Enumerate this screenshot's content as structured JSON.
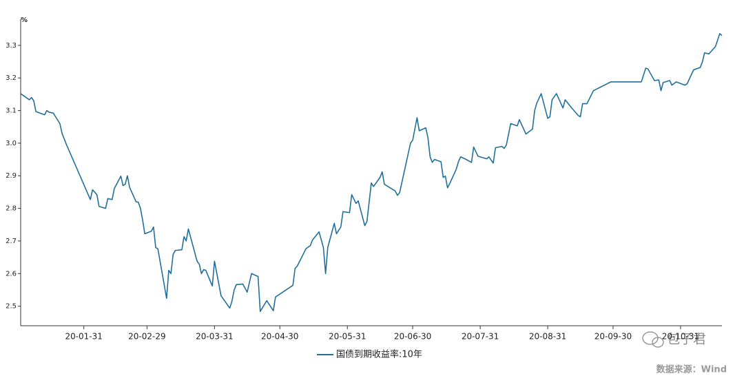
{
  "chart_data": {
    "type": "line",
    "unit_label": "%",
    "x": [
      "20-01-02",
      "20-01-06",
      "20-01-07",
      "20-01-08",
      "20-01-09",
      "20-01-13",
      "20-01-14",
      "20-01-15",
      "20-01-17",
      "20-01-20",
      "20-01-21",
      "20-01-23",
      "20-02-03",
      "20-02-04",
      "20-02-06",
      "20-02-07",
      "20-02-10",
      "20-02-11",
      "20-02-13",
      "20-02-14",
      "20-02-17",
      "20-02-18",
      "20-02-19",
      "20-02-20",
      "20-02-21",
      "20-02-24",
      "20-02-25",
      "20-02-26",
      "20-02-27",
      "20-02-28",
      "20-03-02",
      "20-03-03",
      "20-03-04",
      "20-03-05",
      "20-03-09",
      "20-03-10",
      "20-03-11",
      "20-03-12",
      "20-03-13",
      "20-03-16",
      "20-03-17",
      "20-03-18",
      "20-03-19",
      "20-03-23",
      "20-03-24",
      "20-03-25",
      "20-03-26",
      "20-03-27",
      "20-03-30",
      "20-03-31",
      "20-04-03",
      "20-04-07",
      "20-04-08",
      "20-04-09",
      "20-04-10",
      "20-04-13",
      "20-04-15",
      "20-04-17",
      "20-04-20",
      "20-04-21",
      "20-04-24",
      "20-04-27",
      "20-04-28",
      "20-05-06",
      "20-05-07",
      "20-05-08",
      "20-05-11",
      "20-05-12",
      "20-05-14",
      "20-05-15",
      "20-05-18",
      "20-05-20",
      "20-05-21",
      "20-05-22",
      "20-05-25",
      "20-05-26",
      "20-05-28",
      "20-05-29",
      "20-06-01",
      "20-06-02",
      "20-06-04",
      "20-06-05",
      "20-06-08",
      "20-06-09",
      "20-06-11",
      "20-06-12",
      "20-06-15",
      "20-06-16",
      "20-06-17",
      "20-06-22",
      "20-06-23",
      "20-06-24",
      "20-06-29",
      "20-06-30",
      "20-07-02",
      "20-07-03",
      "20-07-06",
      "20-07-07",
      "20-07-08",
      "20-07-09",
      "20-07-10",
      "20-07-13",
      "20-07-14",
      "20-07-15",
      "20-07-16",
      "20-07-17",
      "20-07-20",
      "20-07-21",
      "20-07-22",
      "20-07-24",
      "20-07-27",
      "20-07-28",
      "20-07-30",
      "20-08-03",
      "20-08-04",
      "20-08-06",
      "20-08-07",
      "20-08-10",
      "20-08-11",
      "20-08-12",
      "20-08-14",
      "20-08-17",
      "20-08-18",
      "20-08-21",
      "20-08-24",
      "20-08-25",
      "20-08-26",
      "20-08-28",
      "20-08-31",
      "20-09-01",
      "20-09-02",
      "20-09-04",
      "20-09-07",
      "20-09-08",
      "20-09-11",
      "20-09-14",
      "20-09-15",
      "20-09-16",
      "20-09-18",
      "20-09-21",
      "20-09-29",
      "20-10-09",
      "20-10-13",
      "20-10-15",
      "20-10-16",
      "20-10-19",
      "20-10-21",
      "20-10-22",
      "20-10-23",
      "20-10-26",
      "20-10-27",
      "20-10-29",
      "20-11-02",
      "20-11-03",
      "20-11-05",
      "20-11-06",
      "20-11-09",
      "20-11-10",
      "20-11-11",
      "20-11-13",
      "20-11-16",
      "20-11-18",
      "20-11-19"
    ],
    "series": [
      {
        "name": "国债到期收益率:10年",
        "color": "#1f6f9a",
        "values": [
          3.152,
          3.133,
          3.14,
          3.13,
          3.097,
          3.087,
          3.1,
          3.095,
          3.092,
          3.06,
          3.03,
          2.996,
          2.827,
          2.857,
          2.842,
          2.806,
          2.8,
          2.83,
          2.827,
          2.861,
          2.899,
          2.87,
          2.874,
          2.9,
          2.865,
          2.82,
          2.819,
          2.8,
          2.764,
          2.722,
          2.73,
          2.743,
          2.68,
          2.676,
          2.524,
          2.61,
          2.6,
          2.659,
          2.671,
          2.673,
          2.713,
          2.7,
          2.737,
          2.638,
          2.629,
          2.6,
          2.612,
          2.61,
          2.562,
          2.638,
          2.532,
          2.494,
          2.515,
          2.549,
          2.566,
          2.568,
          2.543,
          2.6,
          2.591,
          2.484,
          2.517,
          2.486,
          2.528,
          2.564,
          2.616,
          2.623,
          2.663,
          2.676,
          2.686,
          2.703,
          2.728,
          2.68,
          2.6,
          2.68,
          2.754,
          2.722,
          2.743,
          2.79,
          2.787,
          2.842,
          2.815,
          2.823,
          2.747,
          2.76,
          2.878,
          2.867,
          2.895,
          2.912,
          2.874,
          2.853,
          2.84,
          2.848,
          3.0,
          3.009,
          3.078,
          3.038,
          3.047,
          3.017,
          2.958,
          2.941,
          2.95,
          2.943,
          2.895,
          2.899,
          2.863,
          2.876,
          2.92,
          2.943,
          2.958,
          2.952,
          2.941,
          2.988,
          2.96,
          2.952,
          2.958,
          2.939,
          2.986,
          2.99,
          2.984,
          2.994,
          3.06,
          3.053,
          3.072,
          3.028,
          3.043,
          3.1,
          3.123,
          3.152,
          3.076,
          3.081,
          3.133,
          3.152,
          3.108,
          3.133,
          3.108,
          3.085,
          3.081,
          3.121,
          3.121,
          3.161,
          3.188,
          3.188,
          3.188,
          3.23,
          3.228,
          3.192,
          3.194,
          3.161,
          3.186,
          3.192,
          3.178,
          3.188,
          3.178,
          3.182,
          3.211,
          3.225,
          3.232,
          3.249,
          3.277,
          3.274,
          3.296,
          3.336,
          3.33
        ]
      }
    ],
    "xlim": [
      "20-01-02",
      "20-11-19"
    ],
    "xticks": [
      "20-01-31",
      "20-02-29",
      "20-03-31",
      "20-04-30",
      "20-05-31",
      "20-06-30",
      "20-07-31",
      "20-08-31",
      "20-09-30",
      "20-10-31"
    ],
    "ylim": [
      2.44,
      3.38
    ],
    "yticks": [
      2.5,
      2.6,
      2.7,
      2.8,
      2.9,
      {
        "value": 3,
        "label": "3.0"
      },
      3.1,
      3.2,
      3.3
    ],
    "grid": false,
    "legend": "bottom",
    "watermark": "包子君",
    "source": "数据来源：Wind"
  }
}
